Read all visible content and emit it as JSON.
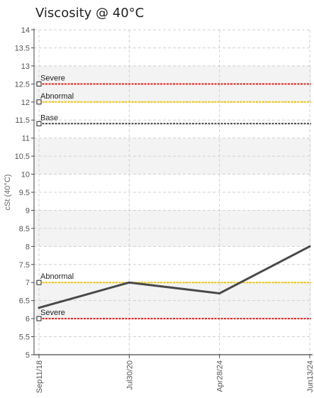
{
  "chart_data": {
    "type": "line",
    "title": "Viscosity @ 40°C",
    "ylabel": "cSt (40°C)",
    "xlabel": "",
    "ylim": [
      5,
      14
    ],
    "y_step": 0.5,
    "y_ticks": [
      "5",
      "5.5",
      "6",
      "6.5",
      "7",
      "7.5",
      "8",
      "8.5",
      "9",
      "9.5",
      "10",
      "10.5",
      "11",
      "11.5",
      "12",
      "12.5",
      "13",
      "13.5",
      "14"
    ],
    "categories": [
      "Sep11/18",
      "Jul30/20",
      "Apr28/24",
      "Jun13/24"
    ],
    "series": [
      {
        "values": [
          6.3,
          7.0,
          6.7,
          8.0
        ],
        "color": "#4a4a4a"
      }
    ],
    "reference_lines": [
      {
        "label": "Severe",
        "value": 12.5,
        "color": "#e8201c"
      },
      {
        "label": "Abnormal",
        "value": 12.0,
        "color": "#f0c400"
      },
      {
        "label": "Base",
        "value": 11.4,
        "color": "#444444"
      },
      {
        "label": "Abnormal",
        "value": 7.0,
        "color": "#f0c400"
      },
      {
        "label": "Severe",
        "value": 6.0,
        "color": "#e8201c"
      }
    ],
    "grid": true,
    "band_colors": [
      "#ffffff",
      "#f3f3f3"
    ]
  }
}
